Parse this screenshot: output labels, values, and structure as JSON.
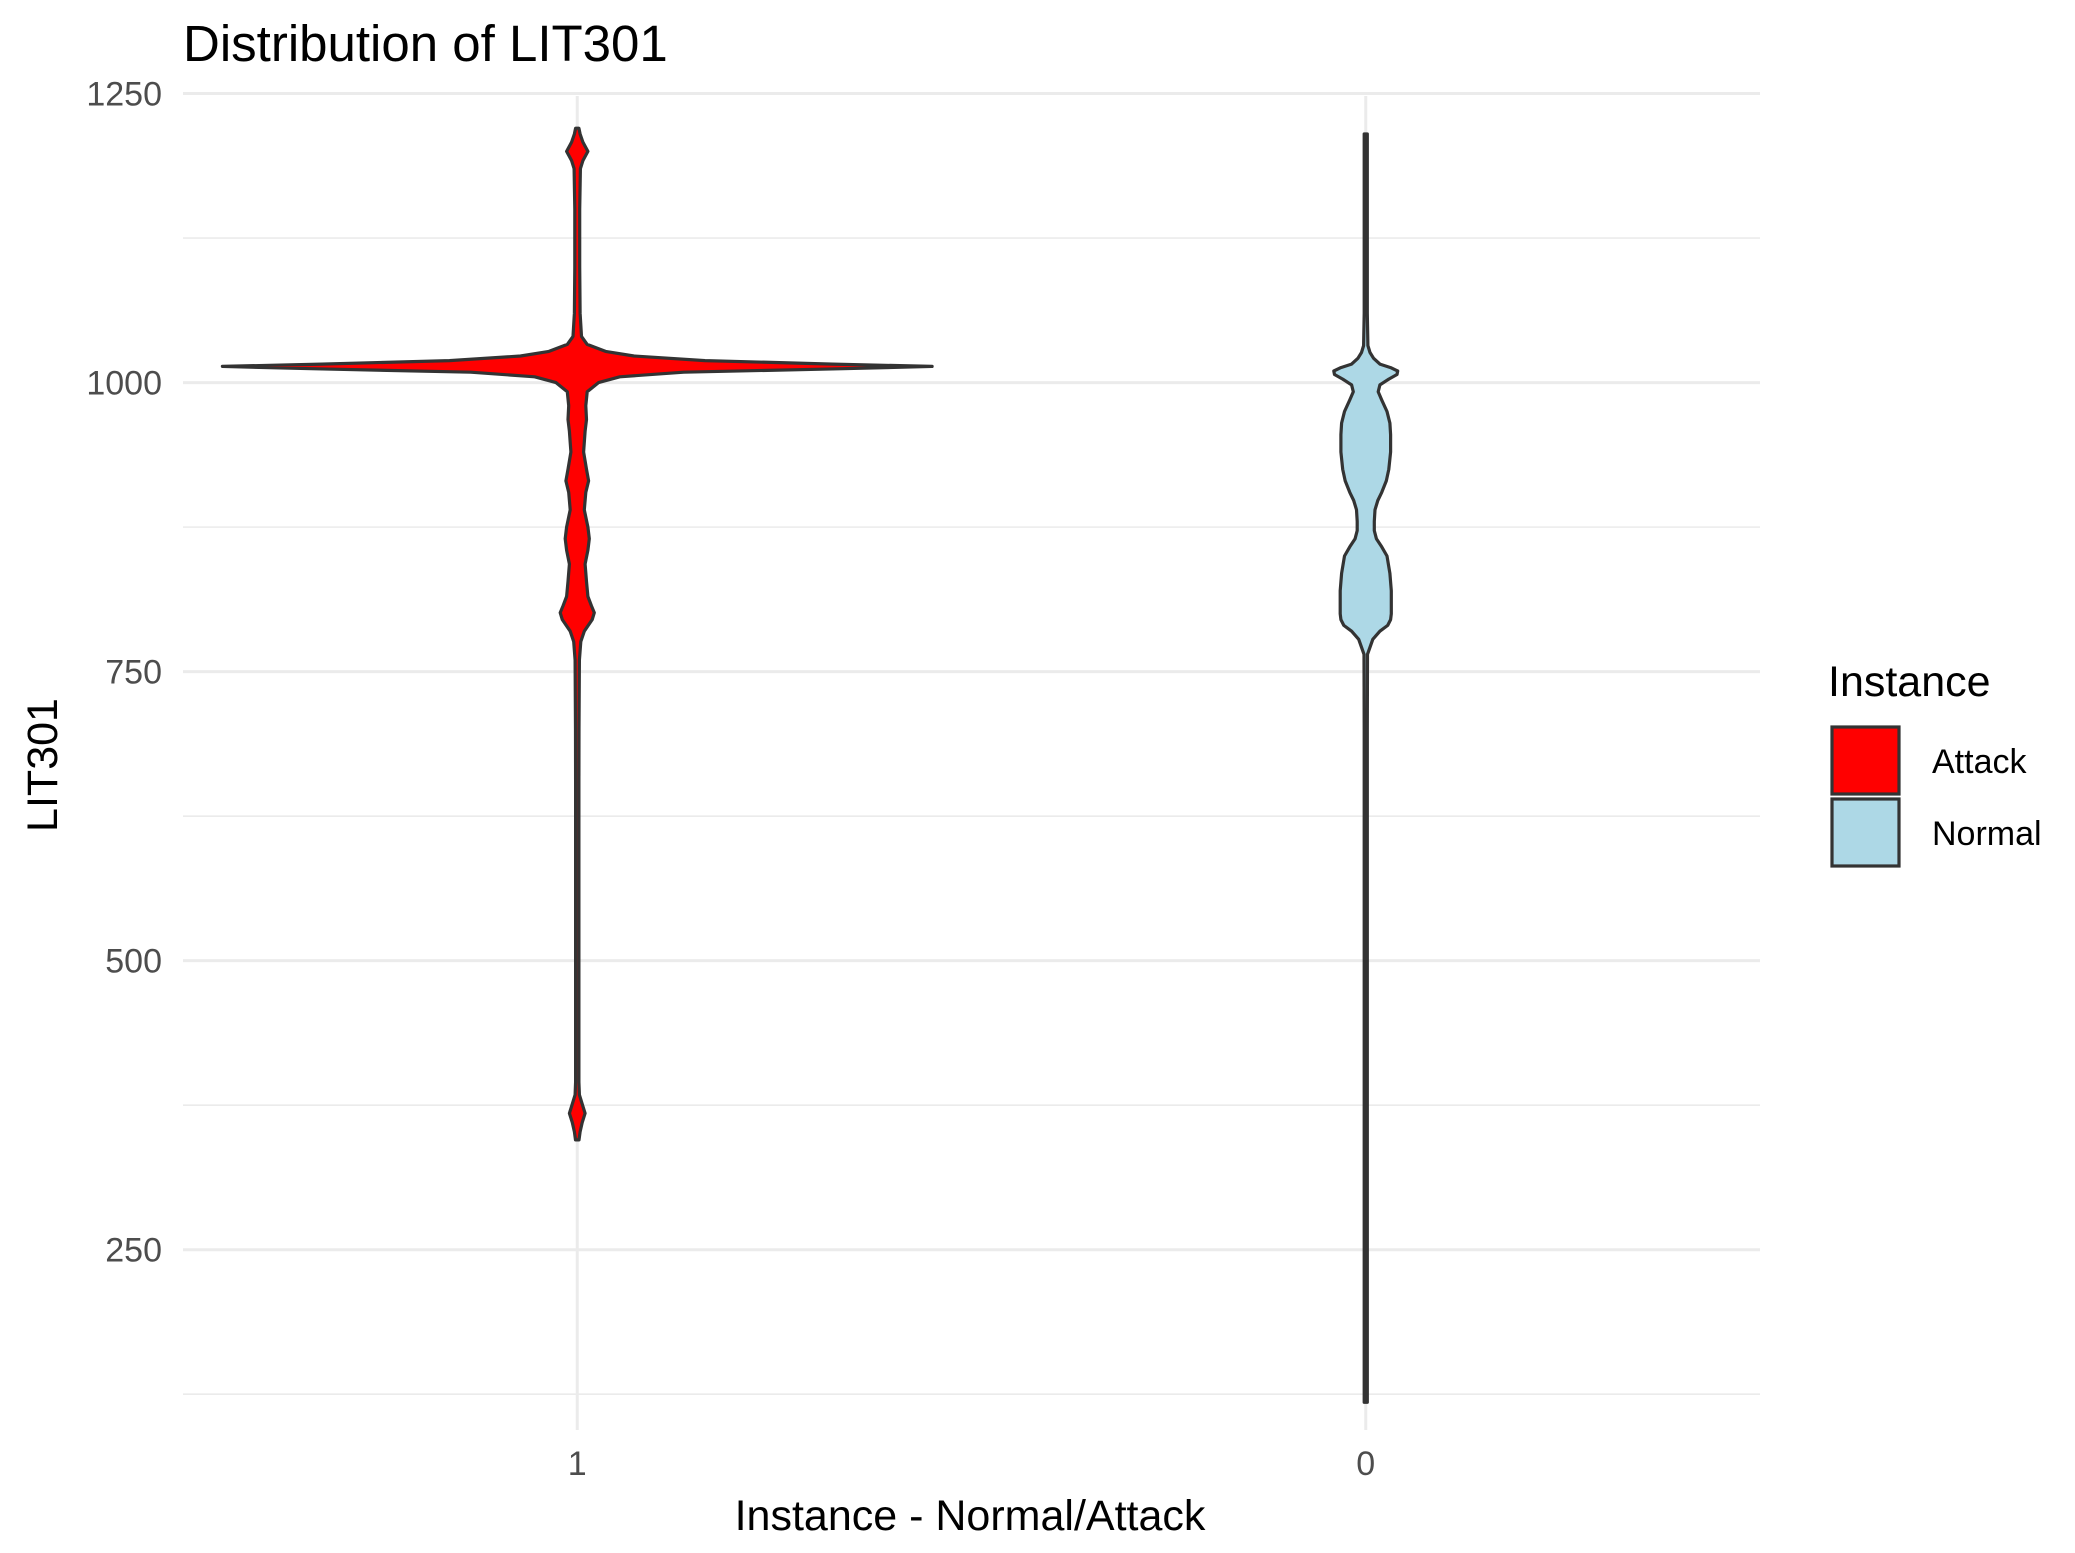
{
  "chart_data": {
    "type": "violin",
    "title": "Distribution of LIT301",
    "xlabel": "Instance - Normal/Attack",
    "ylabel": "LIT301",
    "categories": [
      "1",
      "0"
    ],
    "ylim": [
      120,
      1260
    ],
    "yticks": [
      250,
      500,
      750,
      1000,
      1250
    ],
    "grid": true,
    "legend": {
      "title": "Instance",
      "position": "right",
      "entries": [
        {
          "label": "Attack",
          "color": "#ff0000"
        },
        {
          "label": "Normal",
          "color": "#add8e6"
        }
      ]
    },
    "series": [
      {
        "category": "1",
        "color": "#ff0000",
        "density": [
          [
            345,
            0.005
          ],
          [
            352,
            0.008
          ],
          [
            360,
            0.014
          ],
          [
            368,
            0.022
          ],
          [
            376,
            0.014
          ],
          [
            384,
            0.006
          ],
          [
            395,
            0.004
          ],
          [
            450,
            0.004
          ],
          [
            550,
            0.004
          ],
          [
            650,
            0.004
          ],
          [
            700,
            0.005
          ],
          [
            760,
            0.006
          ],
          [
            776,
            0.01
          ],
          [
            785,
            0.02
          ],
          [
            795,
            0.042
          ],
          [
            801,
            0.048
          ],
          [
            807,
            0.04
          ],
          [
            815,
            0.03
          ],
          [
            828,
            0.026
          ],
          [
            843,
            0.022
          ],
          [
            855,
            0.03
          ],
          [
            865,
            0.034
          ],
          [
            875,
            0.03
          ],
          [
            890,
            0.02
          ],
          [
            905,
            0.024
          ],
          [
            915,
            0.032
          ],
          [
            925,
            0.026
          ],
          [
            940,
            0.018
          ],
          [
            958,
            0.022
          ],
          [
            968,
            0.026
          ],
          [
            980,
            0.024
          ],
          [
            992,
            0.028
          ],
          [
            1000,
            0.06
          ],
          [
            1005,
            0.12
          ],
          [
            1009,
            0.3
          ],
          [
            1012,
            0.75
          ],
          [
            1014,
            1.0
          ],
          [
            1016,
            0.72
          ],
          [
            1019,
            0.36
          ],
          [
            1023,
            0.16
          ],
          [
            1027,
            0.08
          ],
          [
            1033,
            0.028
          ],
          [
            1040,
            0.012
          ],
          [
            1060,
            0.008
          ],
          [
            1100,
            0.007
          ],
          [
            1150,
            0.007
          ],
          [
            1185,
            0.009
          ],
          [
            1192,
            0.016
          ],
          [
            1200,
            0.03
          ],
          [
            1208,
            0.016
          ],
          [
            1215,
            0.008
          ],
          [
            1220,
            0.004
          ]
        ]
      },
      {
        "category": "0",
        "color": "#add8e6",
        "density": [
          [
            118,
            0.002
          ],
          [
            300,
            0.002
          ],
          [
            500,
            0.002
          ],
          [
            700,
            0.003
          ],
          [
            765,
            0.005
          ],
          [
            778,
            0.02
          ],
          [
            785,
            0.04
          ],
          [
            790,
            0.062
          ],
          [
            795,
            0.07
          ],
          [
            800,
            0.072
          ],
          [
            810,
            0.072
          ],
          [
            820,
            0.072
          ],
          [
            835,
            0.068
          ],
          [
            850,
            0.06
          ],
          [
            858,
            0.045
          ],
          [
            865,
            0.03
          ],
          [
            872,
            0.024
          ],
          [
            880,
            0.024
          ],
          [
            890,
            0.026
          ],
          [
            898,
            0.034
          ],
          [
            905,
            0.045
          ],
          [
            915,
            0.058
          ],
          [
            925,
            0.065
          ],
          [
            940,
            0.07
          ],
          [
            955,
            0.07
          ],
          [
            965,
            0.068
          ],
          [
            975,
            0.06
          ],
          [
            985,
            0.045
          ],
          [
            992,
            0.035
          ],
          [
            998,
            0.04
          ],
          [
            1003,
            0.065
          ],
          [
            1007,
            0.088
          ],
          [
            1010,
            0.09
          ],
          [
            1013,
            0.07
          ],
          [
            1016,
            0.04
          ],
          [
            1021,
            0.022
          ],
          [
            1026,
            0.012
          ],
          [
            1032,
            0.006
          ],
          [
            1060,
            0.003
          ],
          [
            1150,
            0.002
          ],
          [
            1215,
            0.002
          ]
        ]
      }
    ]
  }
}
